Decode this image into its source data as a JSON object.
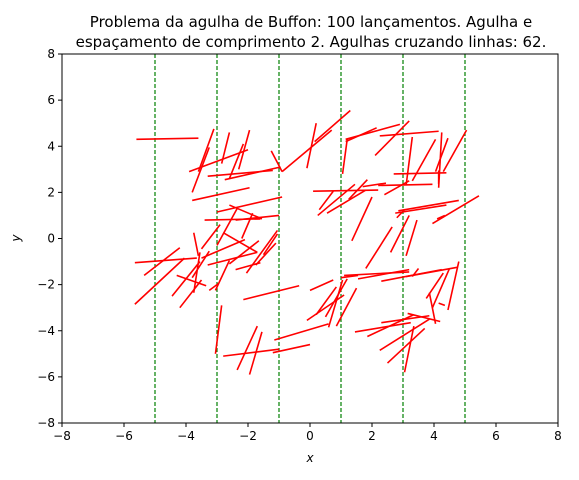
{
  "chart_data": {
    "type": "line",
    "title_line1": "Problema da agulha de Buffon: 100 lançamentos. Agulha e",
    "title_line2": "espaçamento de comprimento 2. Agulhas cruzando linhas: 62.",
    "xlabel": "x",
    "ylabel": "y",
    "xlim": [
      -8,
      8
    ],
    "ylim": [
      -8,
      8
    ],
    "x_ticks": [
      "−8",
      "−6",
      "−4",
      "−2",
      "0",
      "2",
      "4",
      "6",
      "8"
    ],
    "y_ticks": [
      "−8",
      "−6",
      "−4",
      "−2",
      "0",
      "2",
      "4",
      "6",
      "8"
    ],
    "grid": false,
    "parallel_lines": {
      "x": [
        -5,
        -3,
        -1,
        1,
        3,
        5
      ],
      "color": "#008000",
      "style": "dashed"
    },
    "needle_color": "#ff0000",
    "needles": [
      [
        -5.6,
        4.3,
        -3.6,
        4.35
      ],
      [
        -3.9,
        2.9,
        -2.0,
        3.85
      ],
      [
        -3.8,
        2.0,
        -3.25,
        3.95
      ],
      [
        -3.6,
        2.9,
        -3.1,
        4.75
      ],
      [
        -2.85,
        3.25,
        -2.6,
        4.6
      ],
      [
        -2.6,
        2.6,
        -2.15,
        4.1
      ],
      [
        -2.3,
        3.0,
        -1.95,
        4.7
      ],
      [
        -3.3,
        2.7,
        -1.2,
        2.95
      ],
      [
        -2.75,
        2.55,
        -0.95,
        3.1
      ],
      [
        -3.8,
        1.65,
        -1.95,
        2.2
      ],
      [
        -3.0,
        1.15,
        -0.9,
        1.8
      ],
      [
        -1.25,
        3.8,
        -0.9,
        2.9
      ],
      [
        -0.9,
        2.9,
        0.7,
        4.7
      ],
      [
        -0.1,
        3.05,
        0.2,
        5.0
      ],
      [
        0.15,
        4.2,
        1.3,
        5.55
      ],
      [
        1.2,
        4.3,
        1.05,
        2.8
      ],
      [
        0.1,
        2.05,
        2.2,
        2.1
      ],
      [
        0.25,
        1.0,
        1.45,
        2.35
      ],
      [
        1.15,
        4.2,
        2.15,
        4.8
      ],
      [
        1.15,
        4.3,
        2.9,
        4.95
      ],
      [
        2.25,
        4.45,
        4.15,
        4.65
      ],
      [
        2.1,
        3.6,
        3.2,
        5.1
      ],
      [
        3.1,
        2.3,
        3.3,
        4.4
      ],
      [
        3.3,
        2.5,
        4.05,
        4.3
      ],
      [
        4.05,
        2.9,
        4.45,
        4.35
      ],
      [
        4.15,
        2.2,
        4.25,
        4.6
      ],
      [
        4.15,
        2.35,
        4.15,
        2.95
      ],
      [
        2.7,
        2.8,
        4.4,
        2.85
      ],
      [
        4.3,
        2.9,
        5.05,
        4.7
      ],
      [
        2.2,
        2.3,
        3.95,
        2.35
      ],
      [
        2.4,
        1.9,
        3.2,
        2.5
      ],
      [
        1.25,
        1.7,
        1.85,
        2.55
      ],
      [
        1.7,
        2.25,
        2.45,
        2.4
      ],
      [
        0.55,
        1.1,
        1.8,
        2.1
      ],
      [
        0.3,
        1.25,
        0.75,
        2.05
      ],
      [
        2.75,
        1.1,
        4.4,
        1.45
      ],
      [
        2.85,
        1.2,
        4.8,
        1.65
      ],
      [
        3.95,
        0.65,
        5.45,
        1.85
      ],
      [
        4.1,
        0.85,
        4.35,
        1.0
      ],
      [
        3.45,
        0.8,
        3.1,
        -0.75
      ],
      [
        2.6,
        -0.6,
        3.2,
        1.0
      ],
      [
        2.8,
        0.9,
        3.05,
        1.25
      ],
      [
        1.35,
        -0.1,
        2.0,
        1.8
      ],
      [
        1.8,
        -1.3,
        2.65,
        0.5
      ],
      [
        -3.4,
        0.8,
        -1.6,
        0.85
      ],
      [
        -2.4,
        0.8,
        -1.0,
        1.0
      ],
      [
        -2.6,
        1.45,
        -1.55,
        0.85
      ],
      [
        -3.5,
        -0.45,
        -2.9,
        0.6
      ],
      [
        -3.0,
        -0.3,
        -2.35,
        1.3
      ],
      [
        -2.8,
        0.25,
        -1.7,
        -0.6
      ],
      [
        -2.2,
        0.0,
        -1.85,
        1.1
      ],
      [
        -2.05,
        -1.5,
        -1.05,
        0.35
      ],
      [
        -1.5,
        -0.7,
        -1.05,
        0.2
      ],
      [
        -2.6,
        -1.1,
        -1.65,
        -0.1
      ],
      [
        -1.75,
        -1.15,
        -1.1,
        -0.2
      ],
      [
        -3.3,
        -1.15,
        -1.7,
        -0.6
      ],
      [
        -3.5,
        -0.85,
        -2.1,
        -0.05
      ],
      [
        -3.75,
        -2.35,
        -3.55,
        -0.6
      ],
      [
        -3.8,
        -1.7,
        -3.25,
        -0.55
      ],
      [
        -3.6,
        -0.75,
        -3.75,
        0.25
      ],
      [
        -5.65,
        -1.05,
        -3.65,
        -0.85
      ],
      [
        -5.35,
        -1.6,
        -4.2,
        -0.4
      ],
      [
        -5.65,
        -2.85,
        -4.05,
        -0.85
      ],
      [
        -4.45,
        -2.5,
        -3.55,
        -1.0
      ],
      [
        -4.3,
        -1.6,
        -3.35,
        -2.05
      ],
      [
        -3.05,
        -2.25,
        -2.6,
        -0.95
      ],
      [
        -2.4,
        -1.35,
        -1.6,
        -1.05
      ],
      [
        -2.15,
        -2.65,
        -0.35,
        -2.05
      ],
      [
        -4.2,
        -3.0,
        -3.5,
        -1.8
      ],
      [
        -3.25,
        -2.25,
        -2.95,
        -1.95
      ],
      [
        -3.05,
        -5.0,
        -2.85,
        -2.9
      ],
      [
        -2.8,
        -5.1,
        -1.0,
        -4.8
      ],
      [
        -2.35,
        -5.7,
        -1.7,
        -3.8
      ],
      [
        -1.95,
        -5.9,
        -1.55,
        -4.05
      ],
      [
        -1.2,
        -4.95,
        0.0,
        -4.6
      ],
      [
        -1.15,
        -4.4,
        0.6,
        -3.7
      ],
      [
        0.0,
        -2.25,
        0.75,
        -1.8
      ],
      [
        -0.1,
        -3.55,
        1.1,
        -2.45
      ],
      [
        0.2,
        -3.3,
        0.85,
        -2.1
      ],
      [
        0.5,
        -3.4,
        1.2,
        -1.75
      ],
      [
        0.6,
        -3.85,
        1.05,
        -1.8
      ],
      [
        0.85,
        -3.8,
        1.5,
        -2.15
      ],
      [
        1.0,
        -1.7,
        1.55,
        -1.6
      ],
      [
        1.1,
        -1.6,
        3.2,
        -1.45
      ],
      [
        1.55,
        -1.75,
        3.2,
        -1.35
      ],
      [
        2.3,
        -1.85,
        4.25,
        -1.35
      ],
      [
        3.1,
        -1.65,
        4.75,
        -1.25
      ],
      [
        3.95,
        -3.0,
        4.5,
        -1.3
      ],
      [
        3.3,
        -1.65,
        3.5,
        -1.3
      ],
      [
        3.75,
        -2.6,
        4.3,
        -1.5
      ],
      [
        3.85,
        -2.35,
        4.05,
        -3.7
      ],
      [
        4.15,
        -2.8,
        4.35,
        -2.9
      ],
      [
        4.45,
        -3.1,
        4.8,
        -1.0
      ],
      [
        3.15,
        -3.25,
        4.2,
        -3.6
      ],
      [
        2.3,
        -3.65,
        3.85,
        -3.35
      ],
      [
        1.45,
        -4.05,
        3.25,
        -3.65
      ],
      [
        1.85,
        -4.25,
        3.35,
        -3.3
      ],
      [
        2.25,
        -4.85,
        3.85,
        -3.5
      ],
      [
        2.5,
        -5.4,
        3.7,
        -3.9
      ],
      [
        3.05,
        -5.8,
        3.35,
        -3.8
      ]
    ]
  }
}
